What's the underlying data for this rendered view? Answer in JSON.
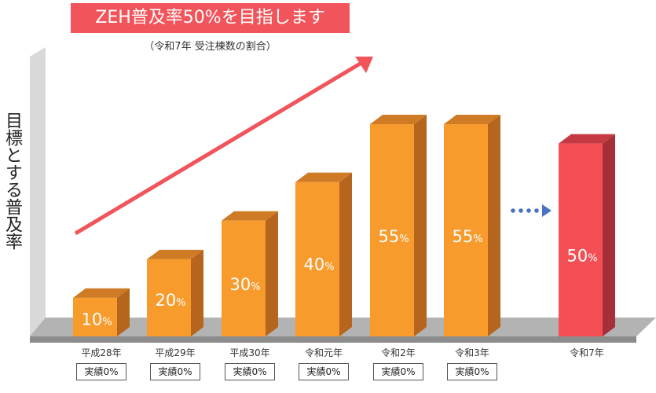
{
  "title": "ZEH普及率50%を目指します",
  "subtitle": "（令和7年 受注棟数の割合）",
  "ylabel": "目標とする普及率",
  "colors": {
    "bar": "#f89b2d",
    "bar_side": "#b5651d",
    "bar_top": "#cf7a24",
    "target_bar": "#f44f55",
    "target_side": "#a5303a",
    "target_top": "#c53a42",
    "arrow": "#f1545a",
    "dots": "#4a72c4"
  },
  "chart_data": {
    "type": "bar",
    "title": "ZEH普及率50%を目指します",
    "ylabel": "目標とする普及率",
    "categories": [
      "平成28年",
      "平成29年",
      "平成30年",
      "令和元年",
      "令和2年",
      "令和3年",
      "令和7年"
    ],
    "values": [
      10,
      20,
      30,
      40,
      55,
      55,
      50
    ],
    "labels": [
      "10%",
      "20%",
      "30%",
      "40%",
      "55%",
      "55%",
      "50%"
    ],
    "actual": [
      "実績0%",
      "実績0%",
      "実績0%",
      "実績0%",
      "実績0%",
      "実績0%",
      ""
    ],
    "target_index": 6,
    "ylim": [
      0,
      60
    ],
    "grid": false
  }
}
